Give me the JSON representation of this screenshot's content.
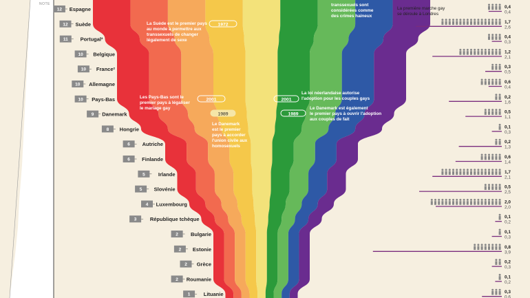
{
  "header": {
    "note_label": "NOTE"
  },
  "colors": {
    "background": "#f6efe0",
    "bands": [
      "#e8323a",
      "#f26a4f",
      "#f6a95b",
      "#f5c84a",
      "#f3e27a",
      "#2b9a3a",
      "#66b95a",
      "#2e59a6",
      "#6a2c8f"
    ],
    "lines": "#7a2c7e",
    "chip": "#8a8a8a"
  },
  "chart_data": {
    "type": "table",
    "rows": [
      {
        "country": "Espagne",
        "score": "12",
        "top": "0,4",
        "bottom": "0,4"
      },
      {
        "country": "Suède",
        "score": "12",
        "top": "1,7",
        "bottom": "2,6"
      },
      {
        "country": "Portugal²",
        "score": "11",
        "top": "0,4",
        "bottom": "0,3"
      },
      {
        "country": "Belgique",
        "score": "10",
        "top": "1,2",
        "bottom": "2,1"
      },
      {
        "country": "France²",
        "score": "10",
        "top": "0,3",
        "bottom": "0,5"
      },
      {
        "country": "Allemagne",
        "score": "10",
        "top": "0,6",
        "bottom": "0,4"
      },
      {
        "country": "Pays-Bas",
        "score": "10",
        "top": "0,2",
        "bottom": "1,6"
      },
      {
        "country": "Danemark",
        "score": "9",
        "top": "0,5",
        "bottom": "1,1"
      },
      {
        "country": "Hongrie",
        "score": "8",
        "top": "0,1",
        "bottom": "0,3"
      },
      {
        "country": "Autriche",
        "score": "6",
        "top": "0,2",
        "bottom": "1,3"
      },
      {
        "country": "Finlande",
        "score": "6",
        "top": "0,6",
        "bottom": "1,4"
      },
      {
        "country": "Irlande",
        "score": "5",
        "top": "1,7",
        "bottom": "2,1"
      },
      {
        "country": "Slovénie",
        "score": "5",
        "top": "0,5",
        "bottom": "2,5"
      },
      {
        "country": "Luxembourg",
        "score": "4",
        "top": "2,0",
        "bottom": "2,0"
      },
      {
        "country": "République tchèque",
        "score": "3",
        "top": "0,1",
        "bottom": "0,2"
      },
      {
        "country": "Bulgarie",
        "score": "2",
        "top": "0,1",
        "bottom": "0,3"
      },
      {
        "country": "Estonie",
        "score": "2",
        "top": "0,8",
        "bottom": "3,9"
      },
      {
        "country": "Grèce",
        "score": "2",
        "top": "0,2",
        "bottom": "0,3"
      },
      {
        "country": "Roumanie",
        "score": "2",
        "top": "0,1",
        "bottom": "0,2"
      },
      {
        "country": "Lituanie",
        "score": "1",
        "top": "0,3",
        "bottom": "0,6"
      }
    ],
    "annotations": [
      {
        "lines": [
          "transsexuels sont",
          "considérées comme",
          "des crimes haineux"
        ],
        "style": "light"
      },
      {
        "lines": [
          "La première marche gay",
          "se déroule à Londres"
        ],
        "style": "dark"
      },
      {
        "lines": [
          "La Suède est le premier pays",
          "au monde à permettre aux",
          "transsexuels de changer",
          "légalement de sexe"
        ],
        "style": "light"
      },
      {
        "lines": [
          "Les Pays-Bas sont le",
          "premier pays à légaliser",
          "le mariage gay"
        ],
        "style": "light"
      },
      {
        "lines": [
          "La loi néerlandaise autorise",
          "l'adoption pour les couples gays"
        ],
        "style": "light"
      },
      {
        "lines": [
          "Le Danemark est également",
          "le premier pays à ouvrir l'adoption",
          "aux couples de fait"
        ],
        "style": "light"
      },
      {
        "lines": [
          "Le Danemark",
          "est le premier",
          "pays à accorder",
          "l'union civile aux",
          "homosexuels"
        ],
        "style": "light"
      }
    ],
    "years": [
      "1972",
      "2001",
      "2001",
      "1989",
      "1989"
    ]
  }
}
